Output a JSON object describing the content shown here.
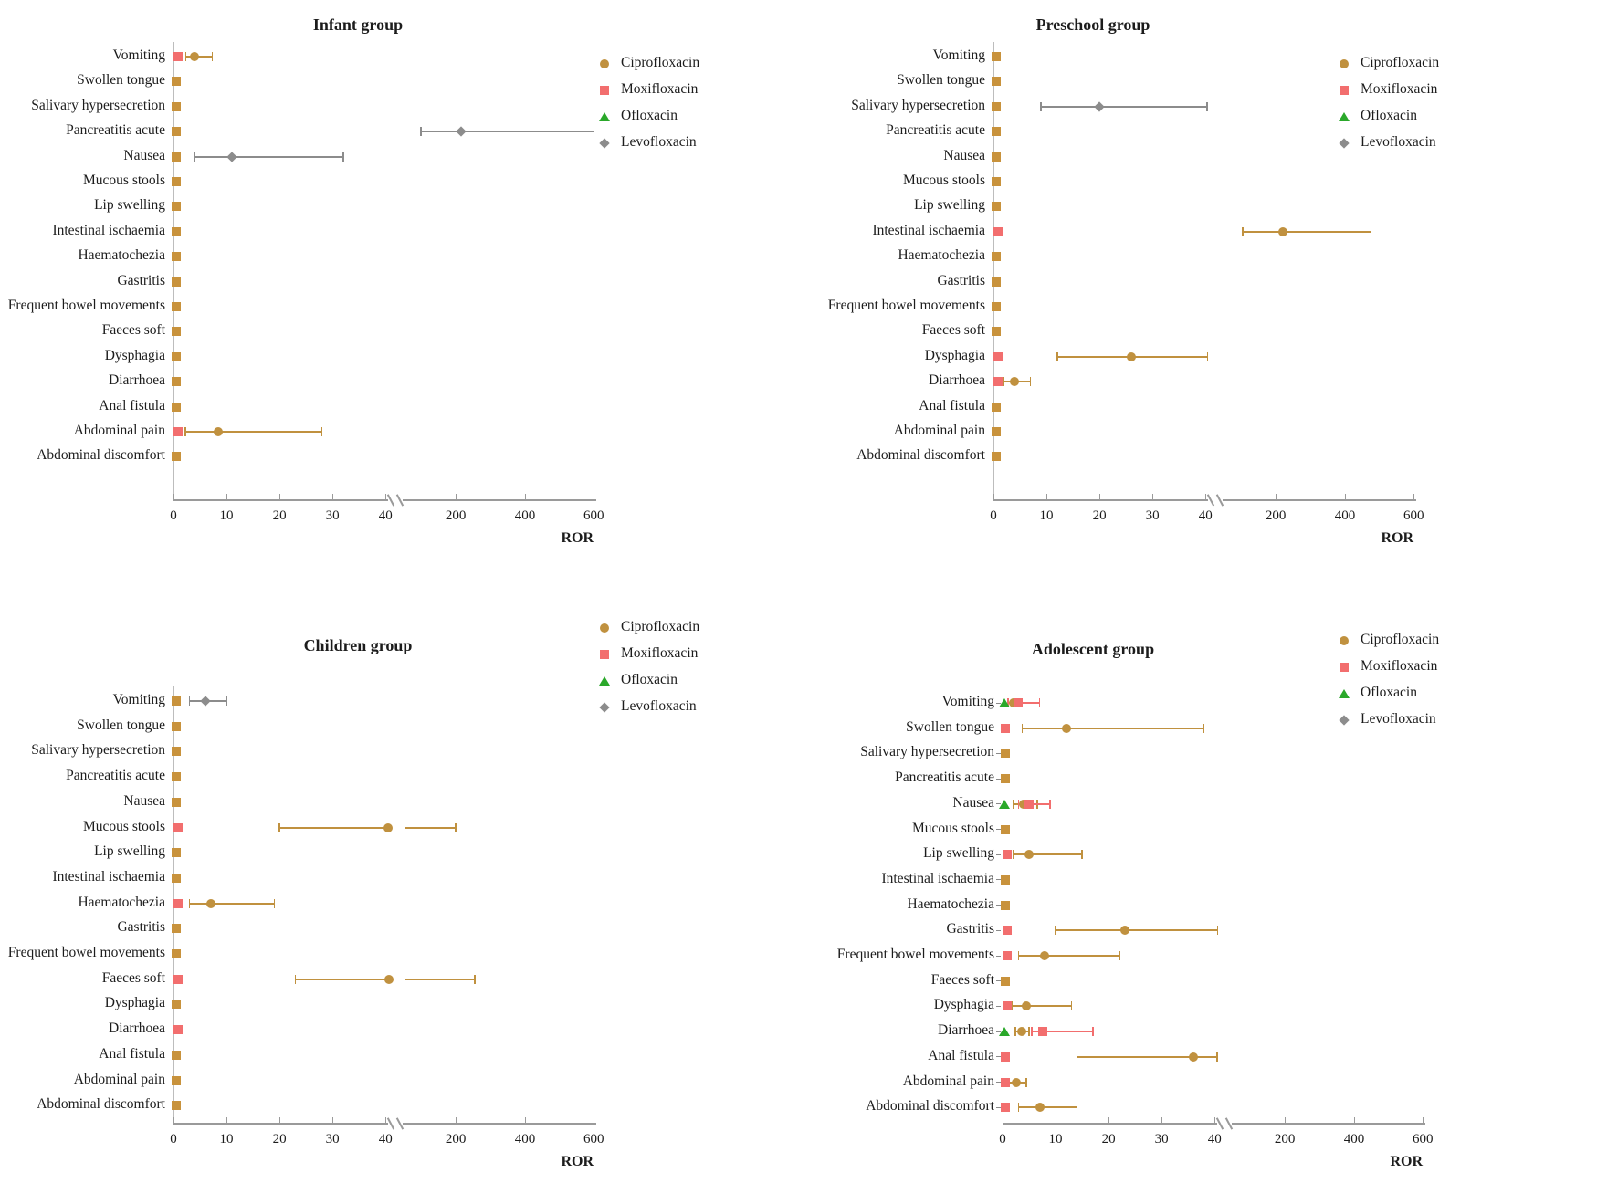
{
  "chart_data": {
    "type": "scatter",
    "subtype": "forest-plot-with-broken-x-axis",
    "xlabel": "ROR",
    "x_ticks": [
      0,
      10,
      20,
      30,
      40,
      200,
      400,
      600
    ],
    "x_break_between": [
      40,
      200
    ],
    "categories": [
      "Vomiting",
      "Swollen tongue",
      "Salivary hypersecretion",
      "Pancreatitis acute",
      "Nausea",
      "Mucous stools",
      "Lip swelling",
      "Intestinal ischaemia",
      "Haematochezia",
      "Gastritis",
      "Frequent bowel movements",
      "Faeces soft",
      "Dysphagia",
      "Diarrhoea",
      "Anal fistula",
      "Abdominal pain",
      "Abdominal discomfort"
    ],
    "legend": [
      {
        "name": "Ciprofloxacin",
        "shape": "circle",
        "color": "#c0913f"
      },
      {
        "name": "Moxifloxacin",
        "shape": "square",
        "color": "#f26e6e"
      },
      {
        "name": "Ofloxacin",
        "shape": "triangle",
        "color": "#2aa82a"
      },
      {
        "name": "Levofloxacin",
        "shape": "diamond",
        "color": "#8c8c8c"
      }
    ],
    "colors": {
      "ciprofloxacin": "#c0913f",
      "moxifloxacin": "#f26e6e",
      "ofloxacin": "#2aa82a",
      "levofloxacin": "#8c8c8c",
      "baseline": "#c8923c",
      "axis": "#9a9a9a",
      "text": "#1c1c1c"
    },
    "marker_shapes": {
      "ciprofloxacin": "circle",
      "moxifloxacin": "square",
      "ofloxacin": "triangle",
      "levofloxacin": "diamond",
      "baseline": "square"
    },
    "panels": [
      {
        "title": "Infant group",
        "rows": [
          [
            {
              "drug": "moxifloxacin",
              "ror": 0.8
            },
            {
              "drug": "ciprofloxacin",
              "ror": 4,
              "ci": [
                2.3,
                7.3
              ]
            }
          ],
          [
            {
              "drug": "baseline",
              "ror": 0.6
            }
          ],
          [
            {
              "drug": "baseline",
              "ror": 0.6
            }
          ],
          [
            {
              "drug": "baseline",
              "ror": 0.6
            },
            {
              "drug": "levofloxacin",
              "ror": 215,
              "ci": [
                120,
                600
              ]
            }
          ],
          [
            {
              "drug": "baseline",
              "ror": 0.6
            },
            {
              "drug": "levofloxacin",
              "ror": 11,
              "ci": [
                4,
                32
              ]
            }
          ],
          [
            {
              "drug": "baseline",
              "ror": 0.6
            }
          ],
          [
            {
              "drug": "baseline",
              "ror": 0.6
            }
          ],
          [
            {
              "drug": "baseline",
              "ror": 0.6
            }
          ],
          [
            {
              "drug": "baseline",
              "ror": 0.6
            }
          ],
          [
            {
              "drug": "baseline",
              "ror": 0.6
            }
          ],
          [
            {
              "drug": "baseline",
              "ror": 0.6
            }
          ],
          [
            {
              "drug": "baseline",
              "ror": 0.6
            }
          ],
          [
            {
              "drug": "baseline",
              "ror": 0.6
            }
          ],
          [
            {
              "drug": "baseline",
              "ror": 0.6
            }
          ],
          [
            {
              "drug": "baseline",
              "ror": 0.6
            }
          ],
          [
            {
              "drug": "moxifloxacin",
              "ror": 0.8
            },
            {
              "drug": "ciprofloxacin",
              "ror": 8.5,
              "ci": [
                2.2,
                28
              ]
            }
          ],
          [
            {
              "drug": "baseline",
              "ror": 0.6
            }
          ]
        ]
      },
      {
        "title": "Preschool group",
        "rows": [
          [
            {
              "drug": "baseline",
              "ror": 0.6
            }
          ],
          [
            {
              "drug": "baseline",
              "ror": 0.6
            }
          ],
          [
            {
              "drug": "baseline",
              "ror": 0.6
            },
            {
              "drug": "levofloxacin",
              "ror": 20,
              "ci": [
                9,
                44
              ]
            }
          ],
          [
            {
              "drug": "baseline",
              "ror": 0.6
            }
          ],
          [
            {
              "drug": "baseline",
              "ror": 0.6
            }
          ],
          [
            {
              "drug": "baseline",
              "ror": 0.6
            }
          ],
          [
            {
              "drug": "baseline",
              "ror": 0.6
            }
          ],
          [
            {
              "drug": "moxifloxacin",
              "ror": 0.8
            },
            {
              "drug": "ciprofloxacin",
              "ror": 220,
              "ci": [
                125,
                475
              ]
            }
          ],
          [
            {
              "drug": "baseline",
              "ror": 0.6
            }
          ],
          [
            {
              "drug": "baseline",
              "ror": 0.6
            }
          ],
          [
            {
              "drug": "baseline",
              "ror": 0.6
            }
          ],
          [
            {
              "drug": "baseline",
              "ror": 0.6
            }
          ],
          [
            {
              "drug": "moxifloxacin",
              "ror": 0.8
            },
            {
              "drug": "ciprofloxacin",
              "ror": 26,
              "ci": [
                12,
                45
              ]
            }
          ],
          [
            {
              "drug": "moxifloxacin",
              "ror": 0.8
            },
            {
              "drug": "ciprofloxacin",
              "ror": 4,
              "ci": [
                2,
                7
              ]
            }
          ],
          [
            {
              "drug": "baseline",
              "ror": 0.6
            }
          ],
          [
            {
              "drug": "baseline",
              "ror": 0.6
            }
          ],
          [
            {
              "drug": "baseline",
              "ror": 0.6
            }
          ]
        ]
      },
      {
        "title": "Children group",
        "rows": [
          [
            {
              "drug": "baseline",
              "ror": 0.6
            },
            {
              "drug": "levofloxacin",
              "ror": 6,
              "ci": [
                3,
                10
              ]
            }
          ],
          [
            {
              "drug": "baseline",
              "ror": 0.6
            }
          ],
          [
            {
              "drug": "baseline",
              "ror": 0.6
            }
          ],
          [
            {
              "drug": "baseline",
              "ror": 0.6
            }
          ],
          [
            {
              "drug": "baseline",
              "ror": 0.6
            }
          ],
          [
            {
              "drug": "moxifloxacin",
              "ror": 0.8
            },
            {
              "drug": "ciprofloxacin",
              "ror": 45,
              "ci": [
                20,
                200
              ]
            }
          ],
          [
            {
              "drug": "baseline",
              "ror": 0.6
            }
          ],
          [
            {
              "drug": "baseline",
              "ror": 0.6
            }
          ],
          [
            {
              "drug": "moxifloxacin",
              "ror": 0.8
            },
            {
              "drug": "ciprofloxacin",
              "ror": 7,
              "ci": [
                3,
                19
              ]
            }
          ],
          [
            {
              "drug": "baseline",
              "ror": 0.6
            }
          ],
          [
            {
              "drug": "baseline",
              "ror": 0.6
            }
          ],
          [
            {
              "drug": "moxifloxacin",
              "ror": 0.8
            },
            {
              "drug": "ciprofloxacin",
              "ror": 48,
              "ci": [
                23,
                255
              ]
            }
          ],
          [
            {
              "drug": "baseline",
              "ror": 0.6
            }
          ],
          [
            {
              "drug": "moxifloxacin",
              "ror": 0.8
            }
          ],
          [
            {
              "drug": "baseline",
              "ror": 0.6
            }
          ],
          [
            {
              "drug": "baseline",
              "ror": 0.6
            }
          ],
          [
            {
              "drug": "baseline",
              "ror": 0.6
            }
          ]
        ]
      },
      {
        "title": "Adolescent group",
        "rows": [
          [
            {
              "drug": "ofloxacin",
              "ror": 0.4
            },
            {
              "drug": "ciprofloxacin",
              "ror": 2
            },
            {
              "drug": "moxifloxacin",
              "ror": 3,
              "ci": [
                1,
                7
              ]
            }
          ],
          [
            {
              "drug": "moxifloxacin",
              "ror": 0.5
            },
            {
              "drug": "ciprofloxacin",
              "ror": 12,
              "ci": [
                3.7,
                38
              ]
            }
          ],
          [
            {
              "drug": "baseline",
              "ror": 0.6
            }
          ],
          [
            {
              "drug": "baseline",
              "ror": 0.6
            }
          ],
          [
            {
              "drug": "ofloxacin",
              "ror": 0.3
            },
            {
              "drug": "ciprofloxacin",
              "ror": 4,
              "ci": [
                2,
                6.5
              ]
            },
            {
              "drug": "moxifloxacin",
              "ror": 5,
              "ci": [
                3,
                9
              ]
            }
          ],
          [
            {
              "drug": "baseline",
              "ror": 0.6
            }
          ],
          [
            {
              "drug": "moxifloxacin",
              "ror": 0.8
            },
            {
              "drug": "ciprofloxacin",
              "ror": 5,
              "ci": [
                2,
                15
              ]
            }
          ],
          [
            {
              "drug": "baseline",
              "ror": 0.6
            }
          ],
          [
            {
              "drug": "baseline",
              "ror": 0.6
            }
          ],
          [
            {
              "drug": "moxifloxacin",
              "ror": 0.8
            },
            {
              "drug": "ciprofloxacin",
              "ror": 23,
              "ci": [
                10,
                47
              ]
            }
          ],
          [
            {
              "drug": "moxifloxacin",
              "ror": 0.8
            },
            {
              "drug": "ciprofloxacin",
              "ror": 8,
              "ci": [
                3,
                22
              ]
            }
          ],
          [
            {
              "drug": "baseline",
              "ror": 0.6
            }
          ],
          [
            {
              "drug": "moxifloxacin",
              "ror": 0.8
            },
            {
              "drug": "ciprofloxacin",
              "ror": 4.5,
              "ci": [
                1.8,
                13
              ]
            }
          ],
          [
            {
              "drug": "ofloxacin",
              "ror": 0.4
            },
            {
              "drug": "ciprofloxacin",
              "ror": 3.6,
              "ci": [
                2.4,
                5
              ]
            },
            {
              "drug": "moxifloxacin",
              "ror": 7.6,
              "ci": [
                5.5,
                17
              ]
            }
          ],
          [
            {
              "drug": "moxifloxacin",
              "ror": 0.5
            },
            {
              "drug": "ciprofloxacin",
              "ror": 36,
              "ci": [
                14,
                46
              ]
            }
          ],
          [
            {
              "drug": "moxifloxacin",
              "ror": 0.5
            },
            {
              "drug": "ciprofloxacin",
              "ror": 2.5,
              "ci": [
                1,
                4.5
              ]
            }
          ],
          [
            {
              "drug": "moxifloxacin",
              "ror": 0.5
            },
            {
              "drug": "ciprofloxacin",
              "ror": 7,
              "ci": [
                3,
                14
              ]
            }
          ]
        ]
      }
    ]
  }
}
